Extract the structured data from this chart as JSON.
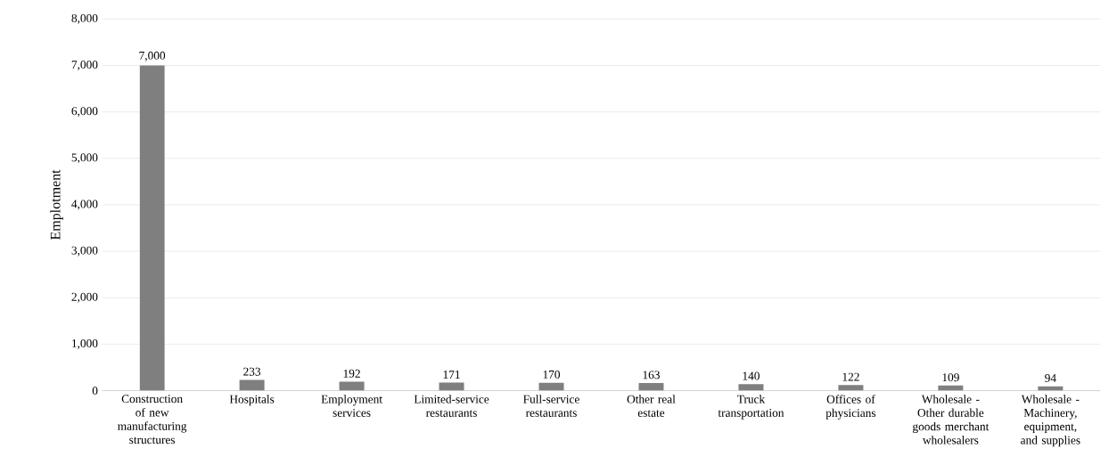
{
  "chart_data": {
    "type": "bar",
    "ylabel": "Emplotment",
    "categories": [
      "Construction of new manufacturing structures",
      "Hospitals",
      "Employment services",
      "Limited-service restaurants",
      "Full-service restaurants",
      "Other real estate",
      "Truck transportation",
      "Offices of physicians",
      "Wholesale - Other durable goods merchant wholesalers",
      "Wholesale - Machinery, equipment, and supplies"
    ],
    "values": [
      7000,
      233,
      192,
      171,
      170,
      163,
      140,
      122,
      109,
      94
    ],
    "value_labels": [
      "7,000",
      "233",
      "192",
      "171",
      "170",
      "163",
      "140",
      "122",
      "109",
      "94"
    ],
    "color": "#7f7f7f",
    "ylim": [
      0,
      8000
    ],
    "yticks": [
      0,
      {
        "value": 1000,
        "label": "1,000"
      },
      {
        "value": 2000,
        "label": "2,000"
      },
      {
        "value": 3000,
        "label": "3,000"
      },
      {
        "value": 4000,
        "label": "4,000"
      },
      {
        "value": 5000,
        "label": "5,000"
      },
      {
        "value": 6000,
        "label": "6,000"
      },
      {
        "value": 7000,
        "label": "7,000"
      },
      {
        "value": 8000,
        "label": "8,000"
      }
    ],
    "grid": "y"
  }
}
